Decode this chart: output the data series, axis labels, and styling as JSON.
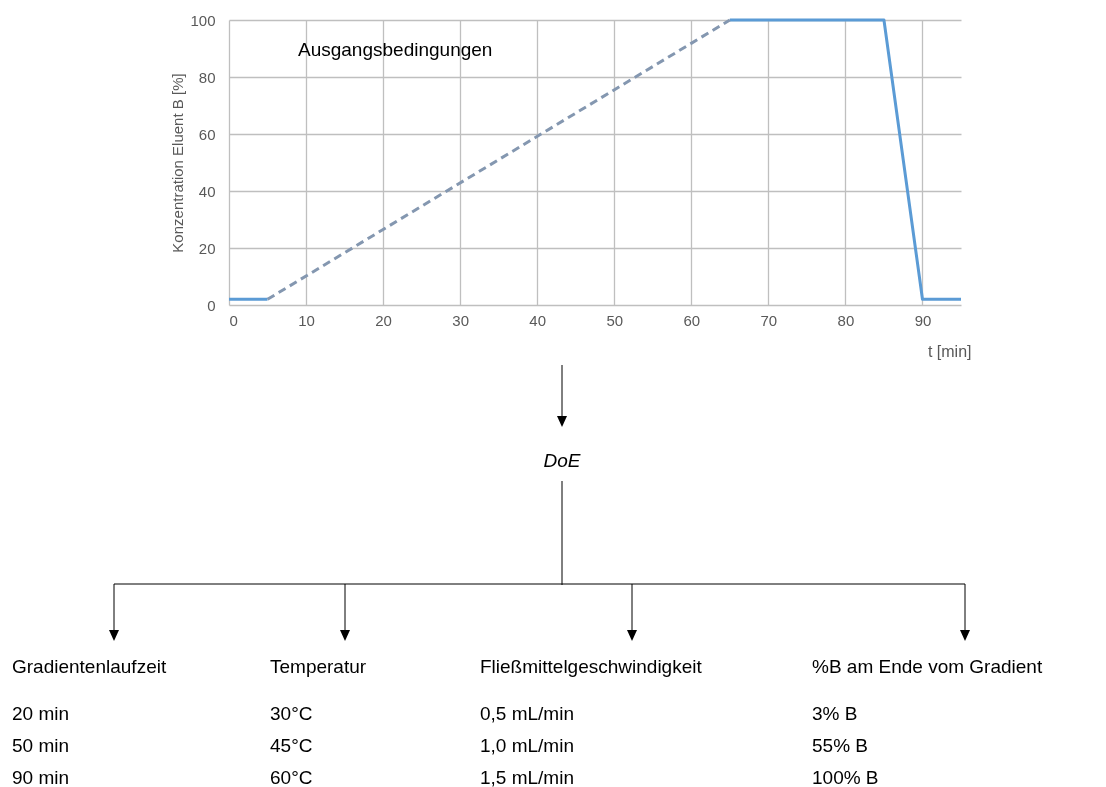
{
  "chart_data": {
    "type": "line",
    "xlabel": "t [min]",
    "ylabel": "Konzentration Eluent B [%]",
    "xlim": [
      0,
      95
    ],
    "xticks": [
      0,
      10,
      20,
      30,
      40,
      50,
      60,
      70,
      80,
      90
    ],
    "ylim": [
      0,
      100
    ],
    "yticks": [
      0,
      20,
      40,
      60,
      80,
      100
    ],
    "grid": true,
    "series": [
      {
        "color": "#5b9bd5",
        "line_style": "solid",
        "x": [
          0,
          5,
          35,
          65,
          85,
          90,
          95
        ],
        "values": [
          2,
          2,
          null,
          100,
          100,
          2,
          2
        ]
      },
      {
        "color": "#8497b0",
        "line_style": "dashed",
        "x": [
          5,
          65
        ],
        "values": [
          2,
          100
        ]
      }
    ],
    "annotations": [
      "Ausgangsbedingungen",
      "DoE",
      "Gradientenlaufzeit",
      "20 min",
      "50 min",
      "90 min",
      "Temperatur",
      "30°C",
      "45°C",
      "60°C",
      "Fließmittelgeschwindigkeit",
      "0,5 mL/min",
      "1,0 mL/min",
      "1,5 mL/min",
      "%B am Ende vom Gradient",
      "3% B",
      "55% B",
      "100% B"
    ]
  }
}
